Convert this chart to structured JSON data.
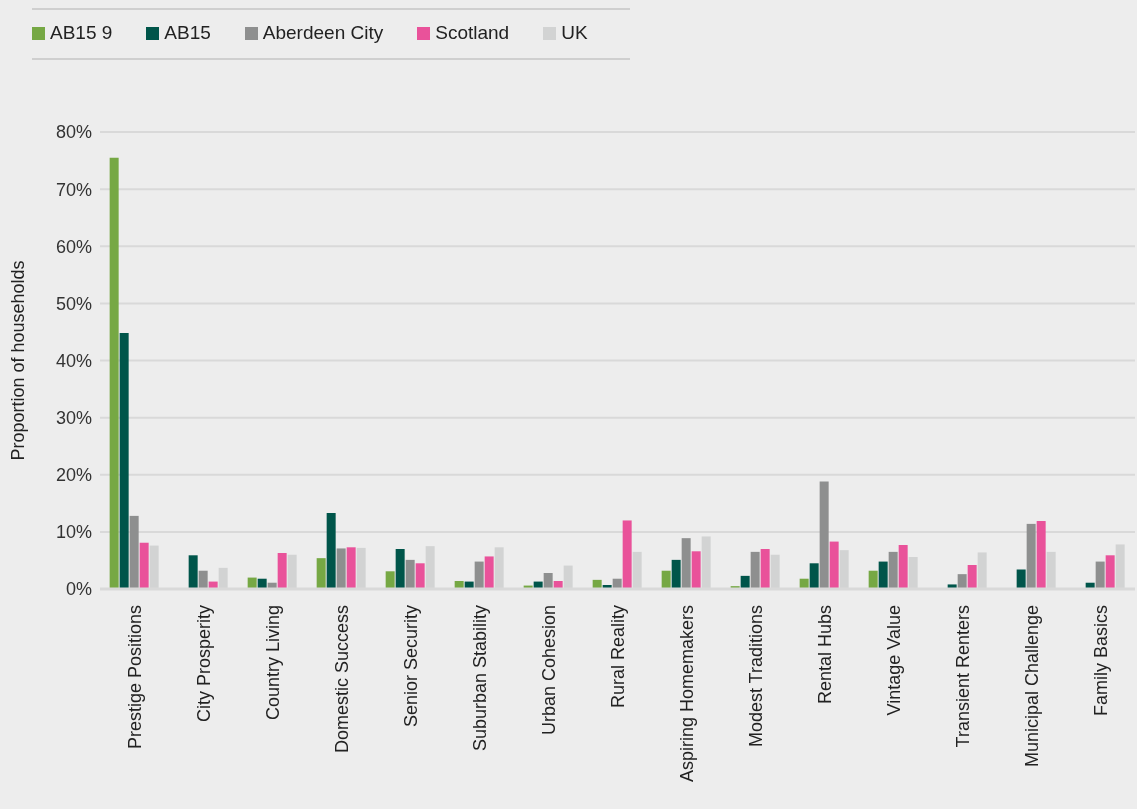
{
  "chart_data": {
    "type": "bar",
    "ylabel": "Proportion of households",
    "categories": [
      "Prestige Positions",
      "City Prosperity",
      "Country Living",
      "Domestic Success",
      "Senior Security",
      "Suburban Stability",
      "Urban Cohesion",
      "Rural Reality",
      "Aspiring Homemakers",
      "Modest Traditions",
      "Rental Hubs",
      "Vintage Value",
      "Transient Renters",
      "Municipal Challenge",
      "Family Basics"
    ],
    "series": [
      {
        "name": "AB15 9",
        "color": "#76a844",
        "values": [
          75.5,
          0,
          2.0,
          5.4,
          3.1,
          1.4,
          0.6,
          1.6,
          3.2,
          0.5,
          1.8,
          3.2,
          0,
          0,
          0
        ]
      },
      {
        "name": "AB15",
        "color": "#00554a",
        "values": [
          44.8,
          5.9,
          1.8,
          13.3,
          7.0,
          1.3,
          1.3,
          0.7,
          5.1,
          2.3,
          4.5,
          4.8,
          0.8,
          3.4,
          1.1
        ]
      },
      {
        "name": "Aberdeen City",
        "color": "#8e8f8f",
        "values": [
          12.8,
          3.2,
          1.1,
          7.1,
          5.1,
          4.8,
          2.8,
          1.8,
          8.9,
          6.5,
          18.8,
          6.5,
          2.6,
          11.4,
          4.8
        ]
      },
      {
        "name": "Scotland",
        "color": "#e9529a",
        "values": [
          8.1,
          1.3,
          6.3,
          7.3,
          4.5,
          5.7,
          1.4,
          12.0,
          6.6,
          7.0,
          8.3,
          7.7,
          4.2,
          11.9,
          5.9
        ]
      },
      {
        "name": "UK",
        "color": "#d2d3d3",
        "values": [
          7.6,
          3.7,
          6.0,
          7.2,
          7.5,
          7.3,
          4.1,
          6.5,
          9.2,
          6.0,
          6.8,
          5.6,
          6.4,
          6.5,
          7.8
        ]
      }
    ],
    "ylim": [
      0,
      80
    ],
    "yticks": [
      {
        "value": 0,
        "label": "0%"
      },
      {
        "value": 10,
        "label": "10%"
      },
      {
        "value": 20,
        "label": "20%"
      },
      {
        "value": 30,
        "label": "30%"
      },
      {
        "value": 40,
        "label": "40%"
      },
      {
        "value": 50,
        "label": "50%"
      },
      {
        "value": 60,
        "label": "60%"
      },
      {
        "value": 70,
        "label": "70%"
      },
      {
        "value": 80,
        "label": "80%"
      }
    ],
    "grid": "y",
    "legend": "top left"
  }
}
